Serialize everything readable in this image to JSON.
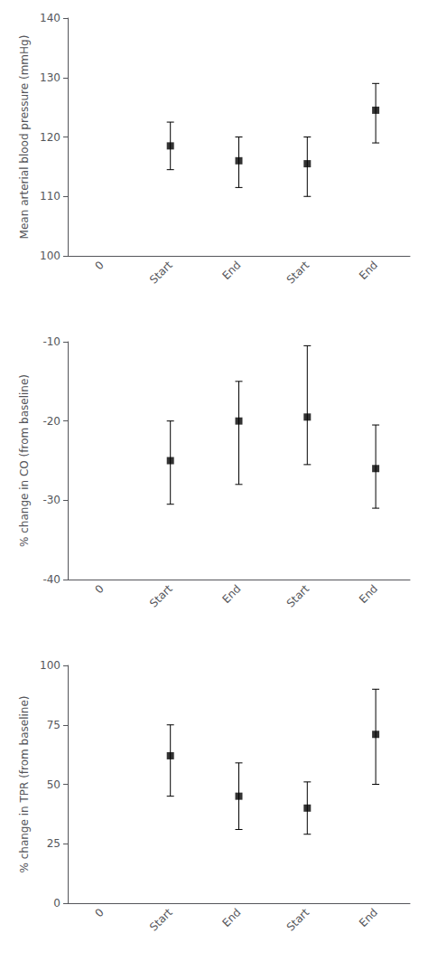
{
  "chart_data": [
    {
      "type": "scatter",
      "ylabel": "Mean arterial blood pressure (mmHg)",
      "categories": [
        "0",
        "Start",
        "End",
        "Start",
        "End"
      ],
      "values": [
        null,
        118.5,
        116,
        115.5,
        124.5
      ],
      "yerr_lo": [
        null,
        4,
        4.5,
        5.5,
        5.5
      ],
      "yerr_hi": [
        null,
        4,
        4,
        4.5,
        4.5
      ],
      "ylim": [
        100,
        140
      ],
      "yticks": [
        100,
        110,
        120,
        130,
        140
      ],
      "color": "#000000",
      "marker": "square",
      "grid": false
    },
    {
      "type": "scatter",
      "ylabel": "% change in CO (from baseline)",
      "categories": [
        "0",
        "Start",
        "End",
        "Start",
        "End"
      ],
      "values": [
        null,
        -25,
        -20,
        -19.5,
        -26
      ],
      "yerr_lo": [
        null,
        5.5,
        8,
        6,
        5
      ],
      "yerr_hi": [
        null,
        5,
        5,
        9,
        5.5
      ],
      "ylim": [
        -40,
        -10
      ],
      "yticks": [
        -40,
        -30,
        -20,
        -10
      ],
      "color": "#000000",
      "marker": "square",
      "grid": false
    },
    {
      "type": "scatter",
      "ylabel": "% change in TPR (from baseline)",
      "categories": [
        "0",
        "Start",
        "End",
        "Start",
        "End"
      ],
      "values": [
        null,
        62,
        45,
        40,
        71
      ],
      "yerr_lo": [
        null,
        17,
        14,
        11,
        21
      ],
      "yerr_hi": [
        null,
        13,
        14,
        11,
        19
      ],
      "ylim": [
        0,
        100
      ],
      "yticks": [
        0,
        25,
        50,
        75,
        100
      ],
      "color": "#000000",
      "marker": "square",
      "grid": false
    }
  ]
}
